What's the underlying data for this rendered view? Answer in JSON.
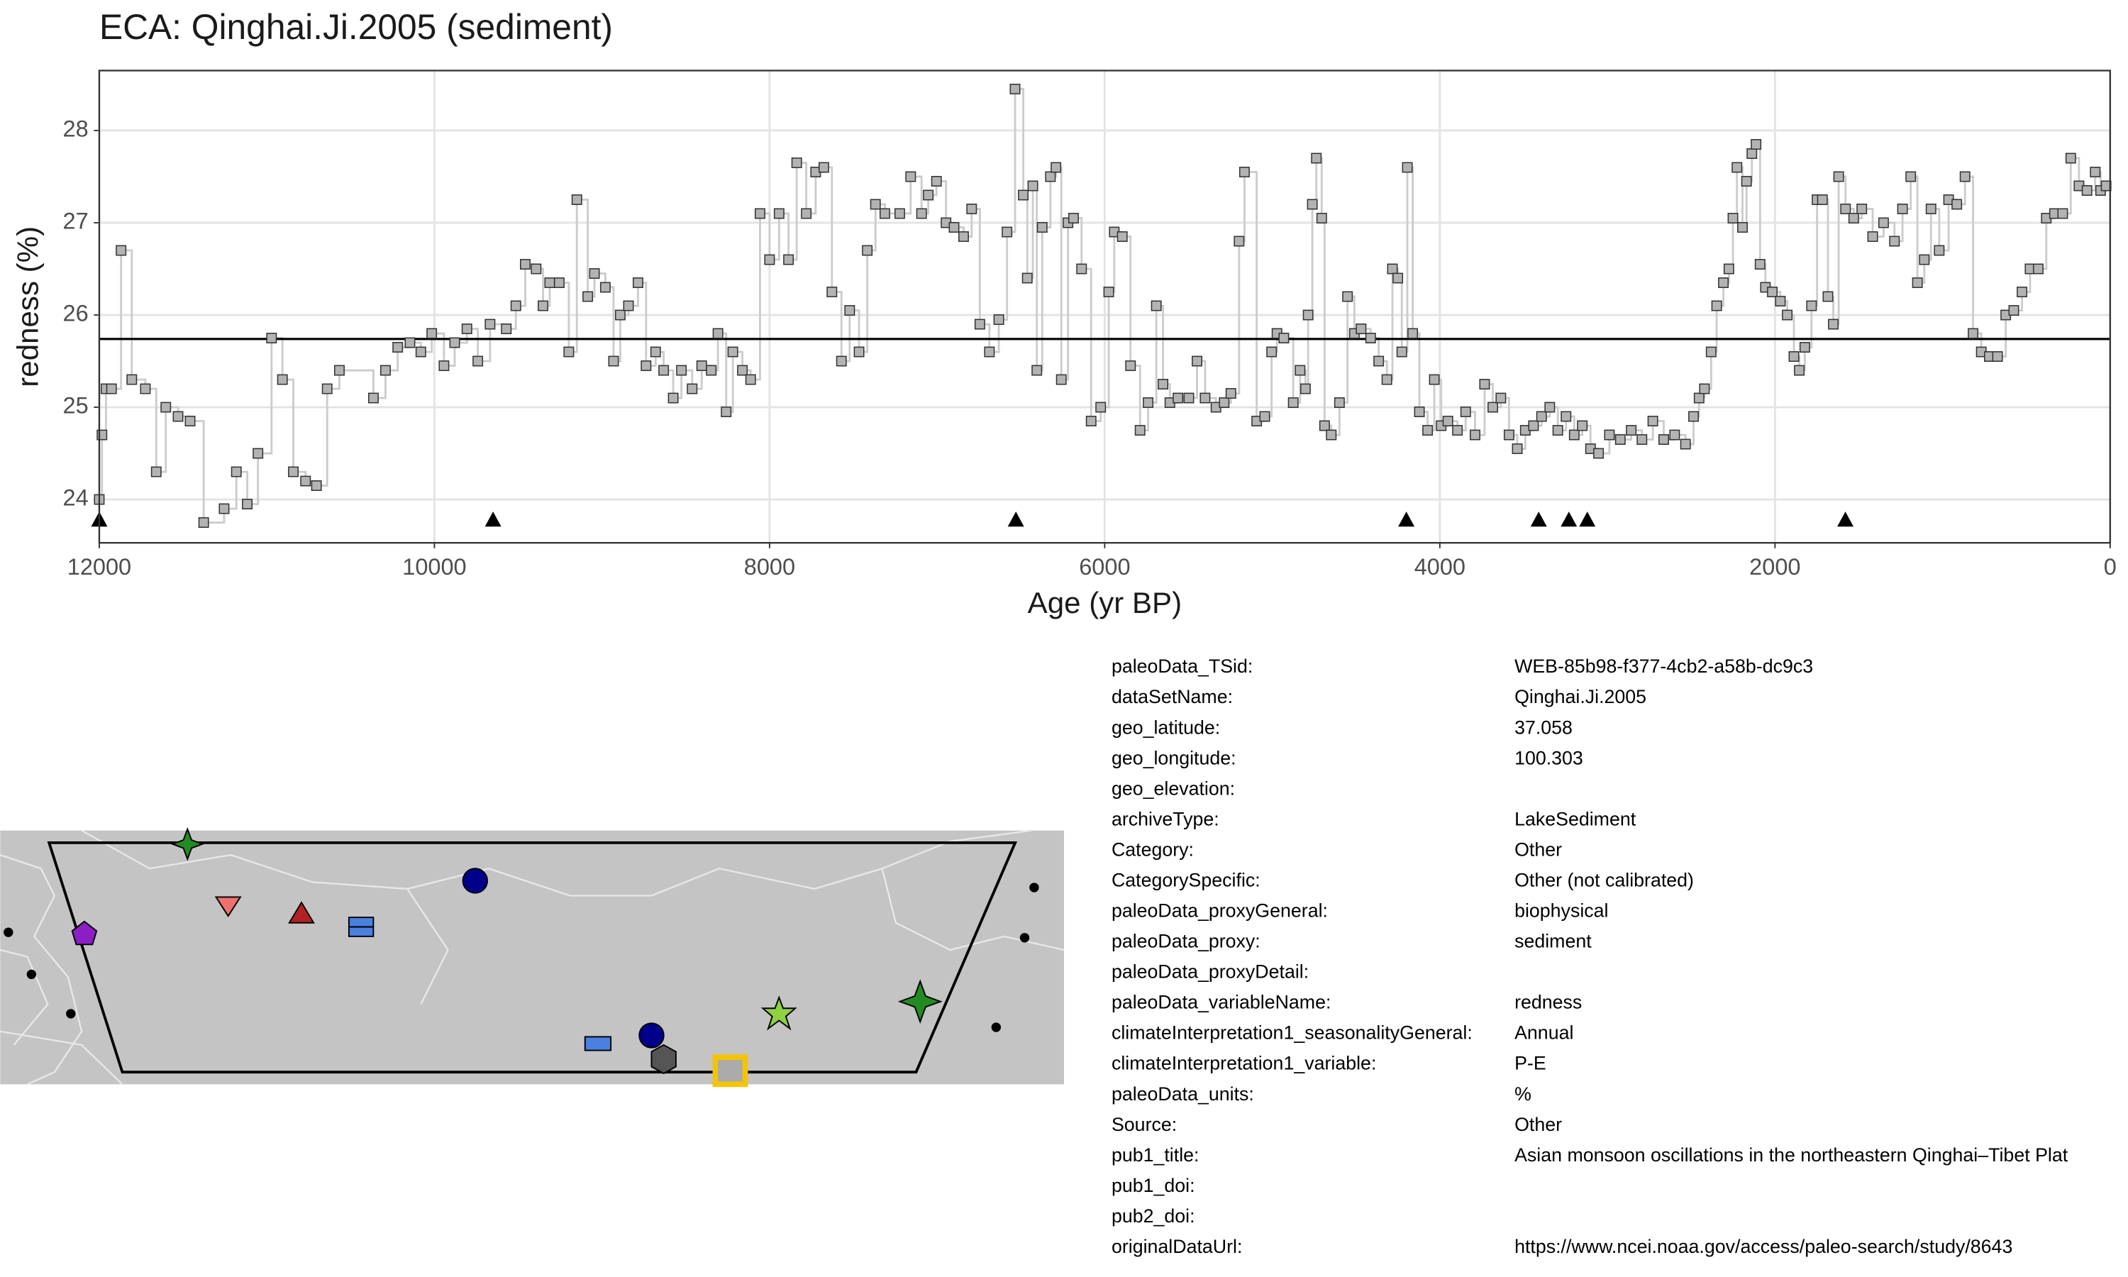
{
  "chart_data": {
    "type": "line",
    "title": "ECA: Qinghai.Ji.2005 (sediment)",
    "x_label": "Age (yr BP)",
    "y_label": "redness (%)",
    "xlim": [
      12000,
      0
    ],
    "ylim": [
      23.53,
      28.65
    ],
    "xticks": [
      12000,
      10000,
      8000,
      6000,
      4000,
      2000,
      0
    ],
    "yticks": [
      24,
      25,
      26,
      27,
      28
    ],
    "grid": true,
    "color": "#b3b3b3",
    "line_color": "#cccccc",
    "mean": 25.74,
    "age_controls": [
      12000,
      9650,
      6530,
      4200,
      3410,
      3230,
      3120,
      1580
    ],
    "x": [
      12000,
      11984,
      11960,
      11927,
      11870,
      11806,
      11725,
      11660,
      11603,
      11530,
      11458,
      11377,
      11255,
      11182,
      11117,
      11053,
      10972,
      10907,
      10842,
      10769,
      10704,
      10640,
      10567,
      10364,
      10292,
      10219,
      10146,
      10081,
      10016,
      9943,
      9879,
      9806,
      9741,
      9668,
      9571,
      9514,
      9458,
      9393,
      9352,
      9312,
      9255,
      9198,
      9150,
      9085,
      9045,
      8980,
      8931,
      8891,
      8842,
      8785,
      8737,
      8680,
      8632,
      8575,
      8526,
      8462,
      8405,
      8348,
      8308,
      8259,
      8219,
      8162,
      8113,
      8057,
      8000,
      7943,
      7887,
      7838,
      7781,
      7725,
      7676,
      7628,
      7571,
      7522,
      7466,
      7417,
      7368,
      7312,
      7223,
      7158,
      7093,
      7053,
      7004,
      6947,
      6899,
      6842,
      6794,
      6745,
      6688,
      6632,
      6583,
      6535,
      6486,
      6462,
      6429,
      6405,
      6373,
      6324,
      6291,
      6259,
      6219,
      6186,
      6138,
      6081,
      6024,
      5976,
      5943,
      5895,
      5846,
      5789,
      5741,
      5692,
      5652,
      5611,
      5563,
      5498,
      5449,
      5401,
      5336,
      5287,
      5247,
      5198,
      5166,
      5093,
      5045,
      5004,
      4972,
      4931,
      4875,
      4834,
      4802,
      4786,
      4761,
      4737,
      4705,
      4688,
      4648,
      4599,
      4551,
      4510,
      4470,
      4413,
      4365,
      4316,
      4283,
      4251,
      4227,
      4194,
      4162,
      4122,
      4073,
      4033,
      3992,
      3952,
      3895,
      3846,
      3790,
      3733,
      3684,
      3636,
      3587,
      3538,
      3490,
      3441,
      3393,
      3344,
      3296,
      3247,
      3198,
      3150,
      3101,
      3053,
      2988,
      2923,
      2858,
      2794,
      2729,
      2664,
      2599,
      2534,
      2486,
      2453,
      2421,
      2381,
      2348,
      2308,
      2275,
      2251,
      2227,
      2194,
      2170,
      2138,
      2113,
      2089,
      2057,
      2016,
      1968,
      1927,
      1887,
      1855,
      1822,
      1782,
      1749,
      1717,
      1684,
      1652,
      1620,
      1579,
      1530,
      1482,
      1417,
      1352,
      1287,
      1239,
      1190,
      1150,
      1109,
      1069,
      1020,
      964,
      915,
      866,
      818,
      769,
      721,
      672,
      623,
      575,
      526,
      478,
      429,
      381,
      332,
      283,
      235,
      186,
      138,
      89,
      57,
      24
    ],
    "values": [
      24.0,
      24.7,
      25.2,
      25.2,
      26.7,
      25.3,
      25.2,
      24.3,
      25.0,
      24.9,
      24.85,
      23.75,
      23.9,
      24.3,
      23.95,
      24.5,
      25.75,
      25.3,
      24.3,
      24.2,
      24.15,
      25.2,
      25.4,
      25.1,
      25.4,
      25.65,
      25.7,
      25.6,
      25.8,
      25.45,
      25.7,
      25.85,
      25.5,
      25.9,
      25.85,
      26.1,
      26.55,
      26.5,
      26.1,
      26.35,
      26.35,
      25.6,
      27.25,
      26.2,
      26.45,
      26.3,
      25.5,
      26.0,
      26.1,
      26.35,
      25.45,
      25.6,
      25.4,
      25.1,
      25.4,
      25.2,
      25.45,
      25.4,
      25.8,
      24.95,
      25.6,
      25.4,
      25.3,
      27.1,
      26.6,
      27.1,
      26.6,
      27.65,
      27.1,
      27.55,
      27.6,
      26.25,
      25.5,
      26.05,
      25.6,
      26.7,
      27.2,
      27.1,
      27.1,
      27.5,
      27.1,
      27.3,
      27.45,
      27.0,
      26.95,
      26.85,
      27.15,
      25.9,
      25.6,
      25.95,
      26.9,
      28.45,
      27.3,
      26.4,
      27.4,
      25.4,
      26.95,
      27.5,
      27.6,
      25.3,
      27.0,
      27.05,
      26.5,
      24.85,
      25.0,
      26.25,
      26.9,
      26.85,
      25.45,
      24.75,
      25.05,
      26.1,
      25.25,
      25.05,
      25.1,
      25.1,
      25.5,
      25.1,
      25.0,
      25.05,
      25.15,
      26.8,
      27.55,
      24.85,
      24.9,
      25.6,
      25.8,
      25.75,
      25.05,
      25.4,
      25.2,
      26.0,
      27.2,
      27.7,
      27.05,
      24.8,
      24.7,
      25.05,
      26.2,
      25.8,
      25.85,
      25.75,
      25.5,
      25.3,
      26.5,
      26.4,
      25.6,
      27.6,
      25.8,
      24.95,
      24.75,
      25.3,
      24.8,
      24.85,
      24.75,
      24.95,
      24.7,
      25.25,
      25.0,
      25.1,
      24.7,
      24.55,
      24.75,
      24.8,
      24.9,
      25.0,
      24.75,
      24.9,
      24.7,
      24.8,
      24.55,
      24.5,
      24.7,
      24.65,
      24.75,
      24.65,
      24.85,
      24.65,
      24.7,
      24.6,
      24.9,
      25.1,
      25.2,
      25.6,
      26.1,
      26.35,
      26.5,
      27.05,
      27.6,
      26.95,
      27.45,
      27.75,
      27.85,
      26.55,
      26.3,
      26.25,
      26.15,
      26.0,
      25.55,
      25.4,
      25.65,
      26.1,
      27.25,
      27.25,
      26.2,
      25.9,
      27.5,
      27.15,
      27.05,
      27.15,
      26.85,
      27.0,
      26.8,
      27.15,
      27.5,
      26.35,
      26.6,
      27.15,
      26.7,
      27.25,
      27.2,
      27.5,
      25.8,
      25.6,
      25.55,
      25.55,
      26.0,
      26.05,
      26.25,
      26.5,
      26.5,
      27.05,
      27.1,
      27.1,
      27.7,
      27.4,
      27.35,
      27.55,
      27.35,
      27.4
    ]
  },
  "metadata": {
    "rows": [
      [
        "paleoData_TSid:",
        "WEB-85b98-f377-4cb2-a58b-dc9c3"
      ],
      [
        "dataSetName:",
        "Qinghai.Ji.2005"
      ],
      [
        "geo_latitude:",
        "37.058"
      ],
      [
        "geo_longitude:",
        "100.303"
      ],
      [
        "geo_elevation:"
      ],
      [
        "archiveType:",
        "LakeSediment"
      ],
      [
        "Category:",
        "Other"
      ],
      [
        "CategorySpecific:",
        "Other (not calibrated)"
      ],
      [
        "paleoData_proxyGeneral:",
        "biophysical"
      ],
      [
        "paleoData_proxy:",
        "sediment"
      ],
      [
        "paleoData_proxyDetail:"
      ],
      [
        "paleoData_variableName:",
        "redness"
      ],
      [
        "climateInterpretation1_seasonalityGeneral:",
        "Annual"
      ],
      [
        "climateInterpretation1_variable:",
        "P-E"
      ],
      [
        "paleoData_units:",
        "%"
      ],
      [
        "Source:",
        "Other"
      ],
      [
        "pub1_title:",
        "Asian monsoon oscillations in the northeastern Qinghai–Tibet Plat"
      ],
      [
        "pub1_doi:"
      ],
      [
        "pub2_doi:"
      ],
      [
        "originalDataUrl:",
        "https://www.ncei.noaa.gov/access/paleo-search/study/8643"
      ]
    ]
  }
}
